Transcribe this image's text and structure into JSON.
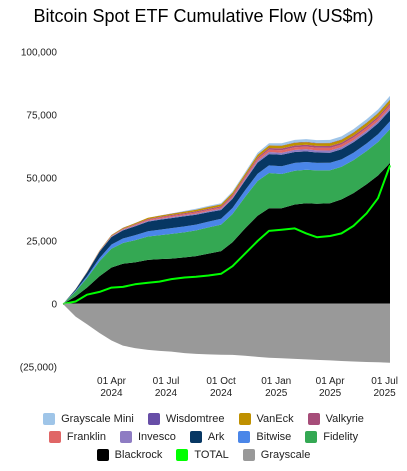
{
  "chart_data": {
    "type": "area",
    "title": "Bitcoin Spot ETF Cumulative Flow (US$m)",
    "xlabel": "",
    "ylabel": "",
    "ylim": [
      -25000,
      100000
    ],
    "yticks": [
      100000,
      75000,
      50000,
      25000,
      0,
      -25000
    ],
    "ytick_labels": [
      "100,000",
      "75,000",
      "50,000",
      "25,000",
      "0",
      "(25,000)"
    ],
    "xticks": [
      {
        "date": "2024-04-01",
        "label": [
          "01 Apr",
          "2024"
        ]
      },
      {
        "date": "2024-07-01",
        "label": [
          "01 Jul",
          "2024"
        ]
      },
      {
        "date": "2024-10-01",
        "label": [
          "01 Oct",
          "2024"
        ]
      },
      {
        "date": "2025-01-01",
        "label": [
          "01 Jan",
          "2025"
        ]
      },
      {
        "date": "2025-04-01",
        "label": [
          "01 Apr",
          "2025"
        ]
      },
      {
        "date": "2025-07-01",
        "label": [
          "01 Jul",
          "2025"
        ]
      }
    ],
    "x": [
      "2024-01-11",
      "2024-02-01",
      "2024-02-20",
      "2024-03-12",
      "2024-04-01",
      "2024-04-20",
      "2024-05-10",
      "2024-06-01",
      "2024-06-20",
      "2024-07-10",
      "2024-08-01",
      "2024-08-20",
      "2024-09-10",
      "2024-10-01",
      "2024-10-20",
      "2024-11-10",
      "2024-12-01",
      "2024-12-20",
      "2025-01-10",
      "2025-02-01",
      "2025-02-20",
      "2025-03-10",
      "2025-04-01",
      "2025-04-20",
      "2025-05-10",
      "2025-06-01",
      "2025-06-20",
      "2025-07-10"
    ],
    "series": [
      {
        "name": "Grayscale Mini",
        "color": "#9fc5e8",
        "values": [
          0,
          0,
          0,
          0,
          0,
          0,
          0,
          0,
          0,
          0,
          200,
          300,
          350,
          400,
          450,
          550,
          700,
          800,
          900,
          1000,
          1050,
          1100,
          1150,
          1200,
          1250,
          1300,
          1350,
          1400
        ]
      },
      {
        "name": "Wisdomtree",
        "color": "#674ea7",
        "values": [
          0,
          10,
          20,
          30,
          35,
          40,
          45,
          50,
          55,
          60,
          65,
          70,
          75,
          80,
          85,
          90,
          95,
          100,
          110,
          115,
          120,
          125,
          130,
          135,
          140,
          145,
          150,
          155
        ]
      },
      {
        "name": "VanEck",
        "color": "#bf9000",
        "values": [
          0,
          50,
          100,
          200,
          300,
          350,
          400,
          450,
          500,
          550,
          600,
          650,
          700,
          750,
          800,
          850,
          950,
          1000,
          1050,
          1100,
          1100,
          1100,
          1150,
          1150,
          1200,
          1250,
          1300,
          1350
        ]
      },
      {
        "name": "Valkyrie",
        "color": "#a64d79",
        "values": [
          0,
          30,
          60,
          100,
          150,
          200,
          250,
          300,
          330,
          360,
          390,
          420,
          450,
          480,
          520,
          560,
          600,
          640,
          680,
          700,
          710,
          720,
          730,
          740,
          750,
          760,
          770,
          780
        ]
      },
      {
        "name": "Franklin",
        "color": "#e06666",
        "values": [
          0,
          20,
          40,
          60,
          120,
          200,
          300,
          400,
          420,
          440,
          460,
          480,
          500,
          520,
          600,
          700,
          850,
          950,
          1000,
          1050,
          1050,
          1050,
          1050,
          1050,
          1060,
          1080,
          1100,
          1120
        ]
      },
      {
        "name": "Invesco",
        "color": "#8e7cc3",
        "values": [
          0,
          50,
          100,
          150,
          200,
          250,
          300,
          350,
          380,
          400,
          420,
          440,
          460,
          480,
          500,
          550,
          700,
          800,
          850,
          850,
          850,
          850,
          850,
          850,
          860,
          870,
          880,
          890
        ]
      },
      {
        "name": "Ark",
        "color": "#073763",
        "values": [
          0,
          500,
          1500,
          2500,
          3000,
          3200,
          3500,
          3800,
          3900,
          4000,
          4000,
          3900,
          3700,
          3500,
          3600,
          3900,
          4400,
          4500,
          4500,
          4300,
          4200,
          4100,
          4000,
          4000,
          4100,
          4200,
          4300,
          4400
        ]
      },
      {
        "name": "Bitwise",
        "color": "#4a86e8",
        "values": [
          0,
          300,
          700,
          1200,
          1600,
          1800,
          2000,
          2100,
          2200,
          2300,
          2300,
          2300,
          2300,
          2300,
          2400,
          2600,
          2900,
          3000,
          3100,
          3100,
          3050,
          3000,
          2950,
          2900,
          2950,
          3000,
          3050,
          3100
        ]
      },
      {
        "name": "Fidelity",
        "color": "#34a853",
        "values": [
          0,
          2000,
          3800,
          6000,
          7500,
          8200,
          8800,
          9300,
          9500,
          9800,
          10000,
          10200,
          10400,
          10500,
          11200,
          12500,
          13800,
          14000,
          13600,
          13400,
          13300,
          13200,
          13100,
          13000,
          13100,
          13200,
          13300,
          13400
        ]
      },
      {
        "name": "Blackrock",
        "color": "#000000",
        "values": [
          0,
          3000,
          6500,
          11000,
          14500,
          16000,
          16500,
          17500,
          17800,
          18000,
          18500,
          19000,
          20000,
          21000,
          24500,
          30000,
          35000,
          38000,
          38000,
          39500,
          40000,
          39800,
          40000,
          41500,
          44000,
          47500,
          51000,
          56000
        ]
      },
      {
        "name": "Grayscale",
        "color": "#999999",
        "values": [
          0,
          -5000,
          -8000,
          -11500,
          -14500,
          -16500,
          -17500,
          -18200,
          -18600,
          -18900,
          -19500,
          -19800,
          -20000,
          -20100,
          -20200,
          -20500,
          -21000,
          -21300,
          -21500,
          -21800,
          -22000,
          -22200,
          -22400,
          -22600,
          -22800,
          -23000,
          -23100,
          -23300
        ]
      }
    ],
    "total": {
      "name": "TOTAL",
      "color": "#00ff00",
      "values": [
        0,
        1000,
        3700,
        4800,
        6500,
        6800,
        7800,
        8400,
        8900,
        9900,
        10500,
        10800,
        11300,
        12000,
        15000,
        20000,
        25000,
        29000,
        29500,
        30000,
        28000,
        26500,
        27000,
        28000,
        31000,
        36000,
        42000,
        55000
      ]
    },
    "legend_position": "bottom",
    "legend_rows": [
      [
        "Grayscale Mini",
        "Wisdomtree",
        "VanEck",
        "Valkyrie"
      ],
      [
        "Franklin",
        "Invesco",
        "Ark",
        "Bitwise",
        "Fidelity"
      ],
      [
        "Blackrock",
        "TOTAL",
        "Grayscale"
      ]
    ],
    "grid": false
  }
}
